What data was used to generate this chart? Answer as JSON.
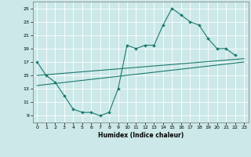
{
  "title": "",
  "xlabel": "Humidex (Indice chaleur)",
  "bg_color": "#cce8e8",
  "grid_color": "#ffffff",
  "line_color": "#1a7a6e",
  "xlim": [
    -0.5,
    23.5
  ],
  "ylim": [
    8,
    26
  ],
  "xticks": [
    0,
    1,
    2,
    3,
    4,
    5,
    6,
    7,
    8,
    9,
    10,
    11,
    12,
    13,
    14,
    15,
    16,
    17,
    18,
    19,
    20,
    21,
    22,
    23
  ],
  "yticks": [
    9,
    11,
    13,
    15,
    17,
    19,
    21,
    23,
    25
  ],
  "curve1_x": [
    0,
    1,
    2,
    3,
    4,
    5,
    6,
    7,
    8,
    9,
    10,
    11,
    12,
    13,
    14,
    15,
    16,
    17,
    18,
    19,
    20,
    21,
    22
  ],
  "curve1_y": [
    17,
    15,
    14,
    12,
    10,
    9.5,
    9.5,
    9,
    9.5,
    13,
    19.5,
    19,
    19.5,
    19.5,
    22.5,
    25,
    24,
    23,
    22.5,
    20.5,
    19,
    19,
    18
  ],
  "curve2_x": [
    0,
    23
  ],
  "curve2_y": [
    15.0,
    17.5
  ],
  "curve3_x": [
    0,
    23
  ],
  "curve3_y": [
    13.5,
    17.0
  ],
  "marker_size": 2.0,
  "linewidth": 0.8,
  "xlabel_fontsize": 5.5,
  "tick_fontsize": 4.5
}
